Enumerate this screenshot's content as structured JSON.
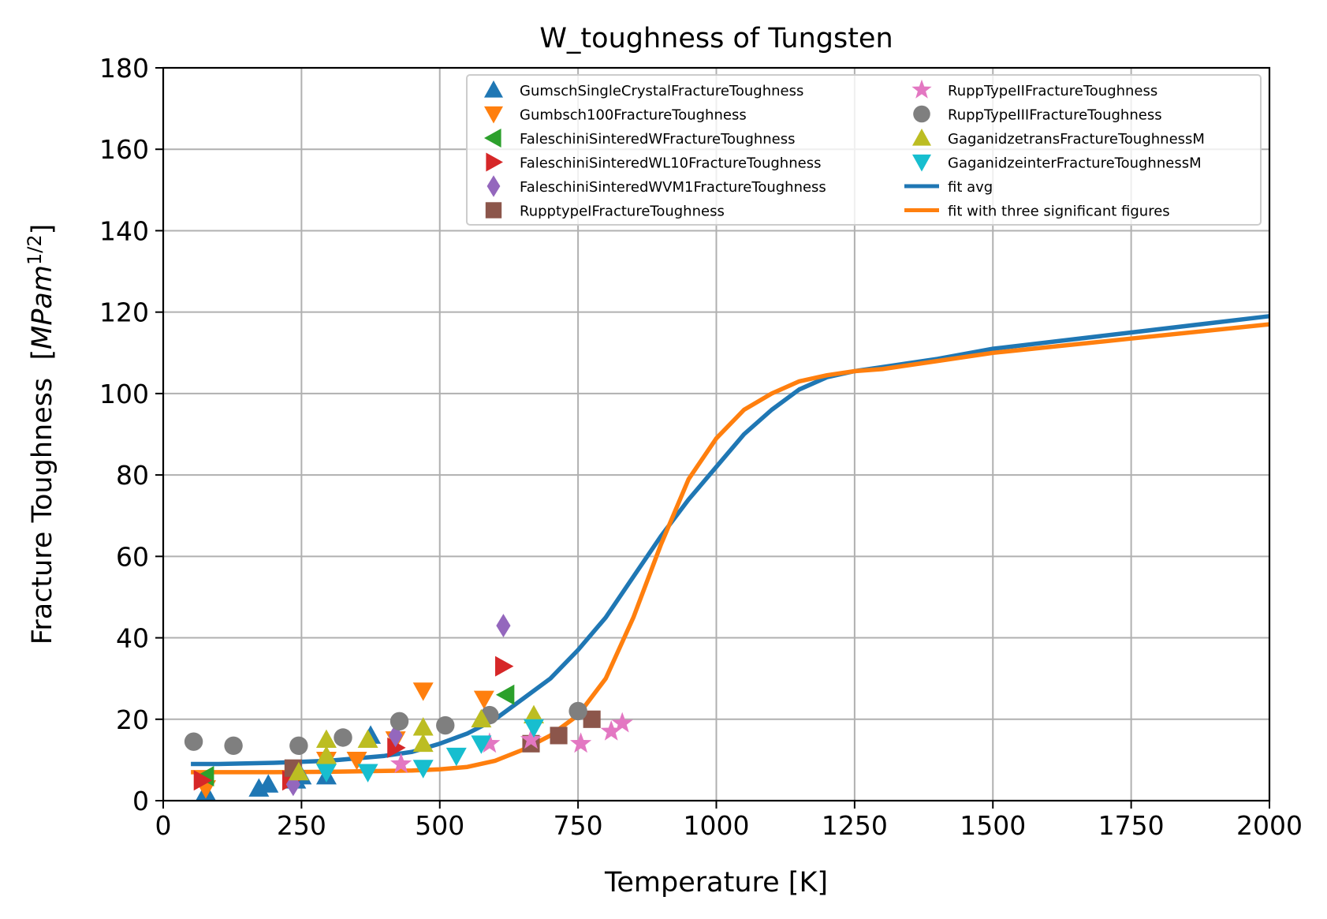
{
  "chart_data": {
    "type": "scatter",
    "title": "W_toughness of Tungsten",
    "xlabel": "Temperature [K]",
    "ylabel_main": "Fracture Toughness",
    "ylabel_unit_prefix": "[",
    "ylabel_unit_italic": "MPam",
    "ylabel_unit_sup": "1/2",
    "ylabel_unit_suffix": "]",
    "xlim": [
      0,
      2000
    ],
    "ylim": [
      0,
      180
    ],
    "xticks": [
      0,
      250,
      500,
      750,
      1000,
      1250,
      1500,
      1750,
      2000
    ],
    "yticks": [
      0,
      20,
      40,
      60,
      80,
      100,
      120,
      140,
      160,
      180
    ],
    "grid": true,
    "legend_position": "top-right",
    "series": [
      {
        "name": "GumschSingleCrystalFractureToughness",
        "marker": "triangle-up",
        "color": "#1f77b4",
        "x": [
          77,
          77,
          173,
          190,
          240,
          250,
          295,
          375
        ],
        "y": [
          1,
          2,
          3,
          4,
          5,
          6,
          6,
          16
        ]
      },
      {
        "name": "Gumbsch100FractureToughness",
        "marker": "triangle-down",
        "color": "#ff7f0e",
        "x": [
          77,
          295,
          350,
          420,
          470,
          580
        ],
        "y": [
          3,
          10,
          10,
          15,
          27,
          25
        ]
      },
      {
        "name": "FaleschiniSinteredWFractureToughness",
        "marker": "triangle-left",
        "color": "#2ca02c",
        "x": [
          77,
          620
        ],
        "y": [
          6,
          26
        ]
      },
      {
        "name": "FaleschiniSinteredWL10FractureToughness",
        "marker": "triangle-right",
        "color": "#d62728",
        "x": [
          70,
          230,
          420,
          615
        ],
        "y": [
          5,
          5,
          13,
          33
        ]
      },
      {
        "name": "FaleschiniSinteredWVM1FractureToughness",
        "marker": "diamond",
        "color": "#9467bd",
        "x": [
          235,
          420,
          615
        ],
        "y": [
          4,
          16,
          43
        ]
      },
      {
        "name": "RupptypeIFractureToughness",
        "marker": "square",
        "color": "#8c564b",
        "x": [
          235,
          665,
          715,
          775
        ],
        "y": [
          8,
          14,
          16,
          20
        ]
      },
      {
        "name": "RuppTypeIIFractureToughness",
        "marker": "star",
        "color": "#e377c2",
        "x": [
          430,
          590,
          665,
          755,
          810,
          830
        ],
        "y": [
          9,
          14,
          15,
          14,
          17,
          19
        ]
      },
      {
        "name": "RuppTypeIIIFractureToughness",
        "marker": "circle",
        "color": "#7f7f7f",
        "x": [
          55,
          127,
          245,
          325,
          427,
          510,
          590,
          750
        ],
        "y": [
          14.5,
          13.5,
          13.5,
          15.5,
          19.5,
          18.5,
          21,
          22
        ]
      },
      {
        "name": "GaganidzetransFractureToughnessM",
        "marker": "triangle-up",
        "color": "#bcbd22",
        "x": [
          245,
          295,
          295,
          370,
          470,
          470,
          575,
          670
        ],
        "y": [
          7,
          11,
          15,
          15,
          14,
          18,
          20,
          21
        ]
      },
      {
        "name": "GaganidzeinterFractureToughnessM",
        "marker": "triangle-down",
        "color": "#17becf",
        "x": [
          295,
          370,
          470,
          530,
          575,
          670
        ],
        "y": [
          7,
          7,
          8,
          11,
          14,
          18
        ]
      }
    ],
    "fits": [
      {
        "name": "fit avg",
        "color": "#1f77b4",
        "x": [
          50,
          100,
          200,
          300,
          400,
          450,
          500,
          550,
          600,
          650,
          700,
          750,
          800,
          850,
          900,
          950,
          1000,
          1050,
          1100,
          1150,
          1200,
          1250,
          1300,
          1400,
          1500,
          1750,
          2000
        ],
        "y": [
          9,
          9,
          9.3,
          9.8,
          11,
          12,
          14,
          16.5,
          20,
          25,
          30,
          37,
          45,
          55,
          65,
          74,
          82,
          90,
          96,
          101,
          104,
          105.5,
          106.5,
          108.5,
          111,
          115,
          119
        ]
      },
      {
        "name": "fit with three significant figures",
        "color": "#ff7f0e",
        "x": [
          50,
          100,
          200,
          300,
          400,
          450,
          500,
          550,
          600,
          650,
          700,
          750,
          800,
          850,
          900,
          950,
          1000,
          1050,
          1100,
          1150,
          1200,
          1250,
          1300,
          1400,
          1500,
          1750,
          2000
        ],
        "y": [
          7,
          7,
          7,
          7.1,
          7.3,
          7.4,
          7.7,
          8.3,
          9.8,
          12.5,
          16,
          21,
          30,
          45,
          63,
          79,
          89,
          96,
          100,
          103,
          104.5,
          105.5,
          106,
          108,
          110,
          113.5,
          117
        ]
      }
    ]
  }
}
